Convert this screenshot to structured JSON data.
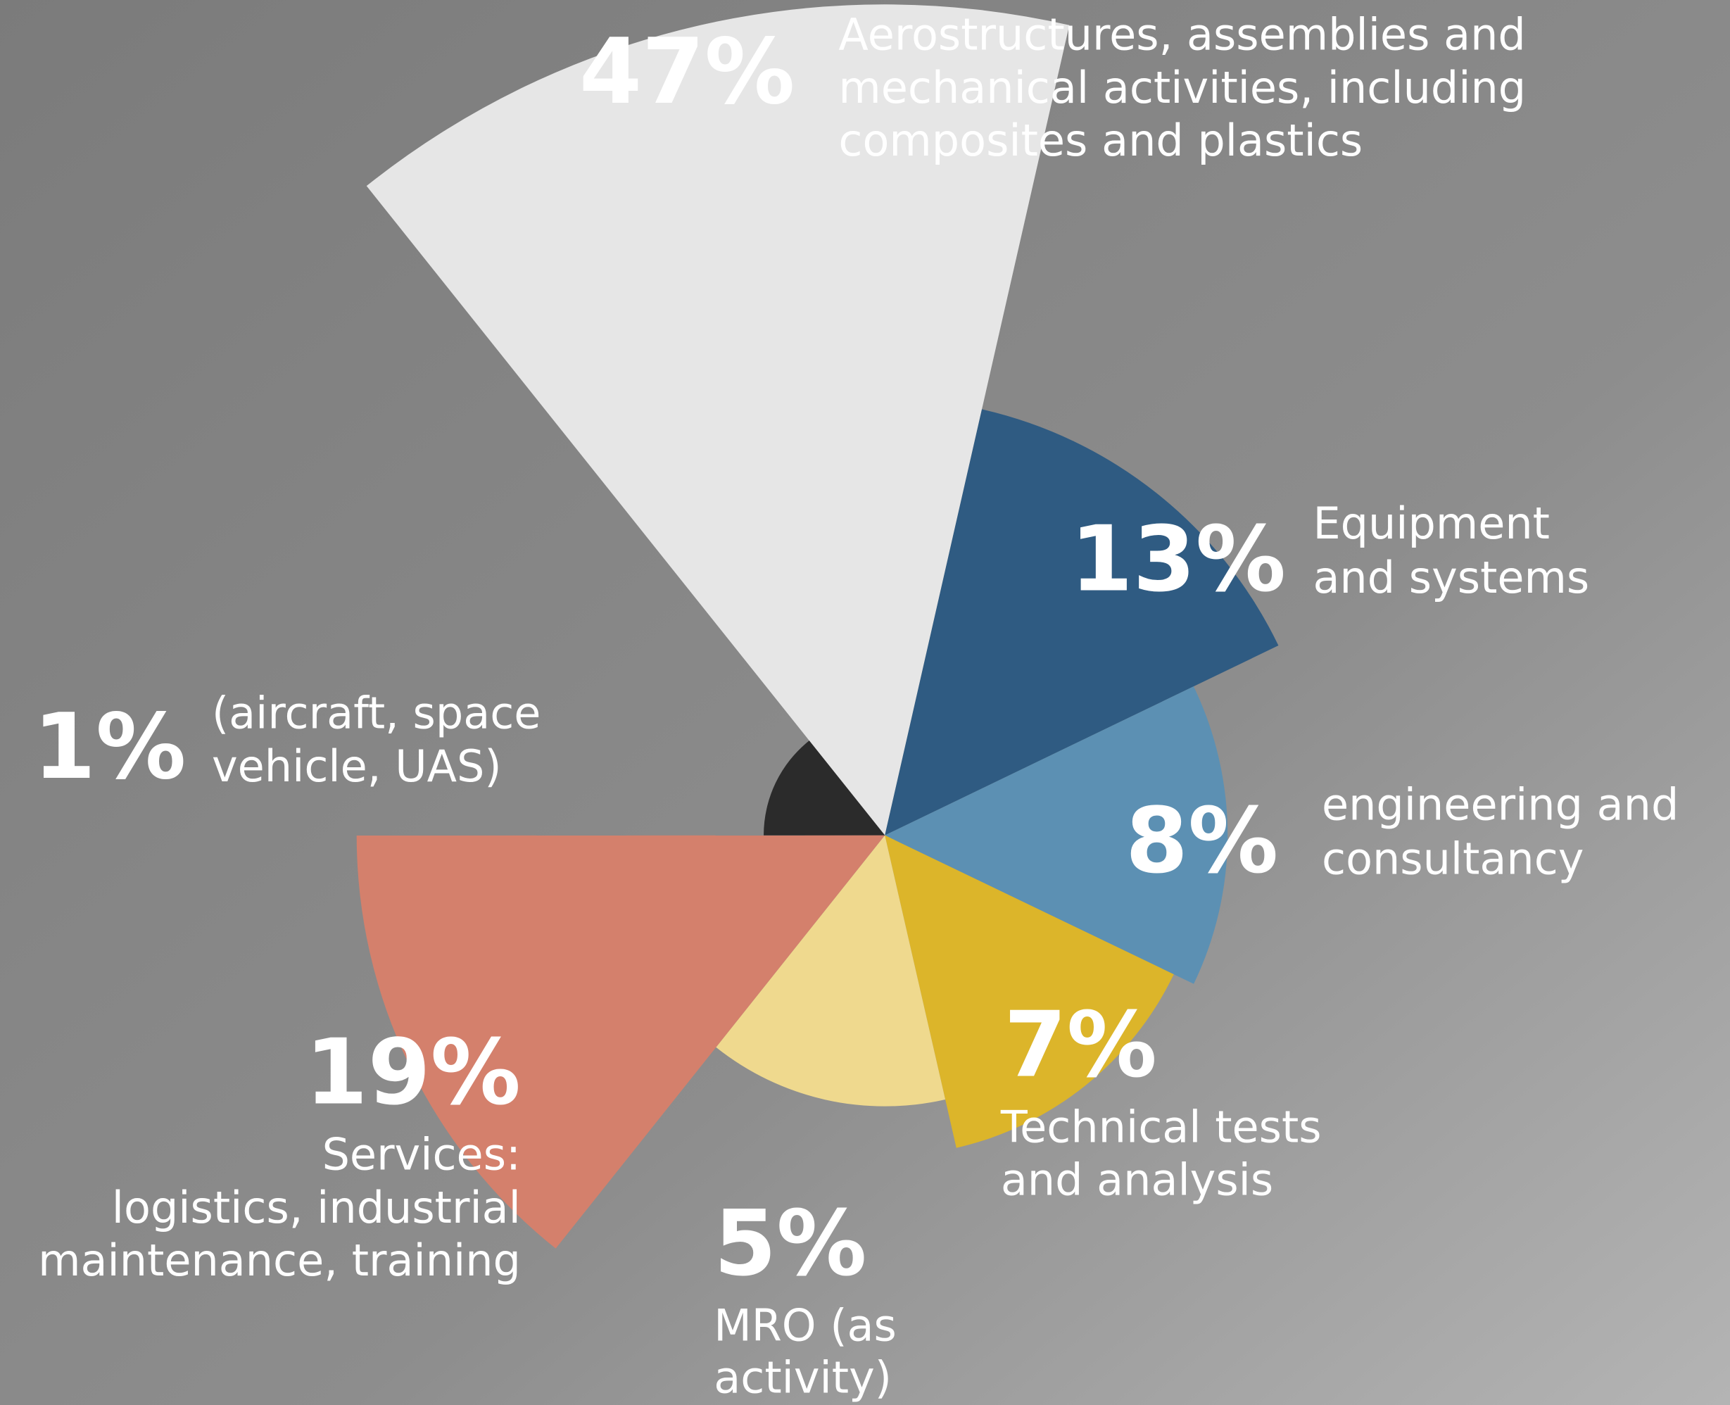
{
  "chart_data": {
    "type": "pie",
    "labels": [
      [
        "Aerostructures, assemblies and",
        "mechanical activities, including",
        "composites and plastics"
      ],
      [
        "Equipment",
        "and systems"
      ],
      [
        "engineering and",
        "consultancy"
      ],
      [
        "Technical tests",
        "and analysis"
      ],
      [
        "MRO (as",
        "activity)"
      ],
      [
        "Services:",
        "logistics, industrial",
        "maintenance, training"
      ],
      [
        "(aircraft, space",
        "vehicle, UAS)"
      ]
    ],
    "values": [
      47,
      13,
      8,
      7,
      5,
      19,
      1
    ],
    "value_labels": [
      "47%",
      "13%",
      "8%",
      "7%",
      "5%",
      "19%",
      "1%"
    ],
    "colors": [
      "#e6e6e6",
      "#2f5b82",
      "#5c90b3",
      "#dcb52a",
      "#efd98e",
      "#d4806c",
      "#2b2b2b"
    ]
  }
}
